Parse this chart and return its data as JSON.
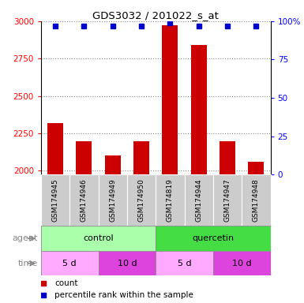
{
  "title": "GDS3032 / 201022_s_at",
  "samples": [
    "GSM174945",
    "GSM174946",
    "GSM174949",
    "GSM174950",
    "GSM174819",
    "GSM174944",
    "GSM174947",
    "GSM174948"
  ],
  "counts": [
    2320,
    2195,
    2105,
    2195,
    2975,
    2840,
    2195,
    2060
  ],
  "percentile_ranks": [
    97,
    97,
    97,
    97,
    99,
    97,
    97,
    97
  ],
  "ylim_left": [
    1975,
    3000
  ],
  "ylim_right": [
    0,
    100
  ],
  "yticks_left": [
    2000,
    2250,
    2500,
    2750,
    3000
  ],
  "yticks_right": [
    0,
    25,
    50,
    75,
    100
  ],
  "bar_color": "#cc0000",
  "dot_color": "#0000cc",
  "agent_groups": [
    {
      "label": "control",
      "start": 0,
      "end": 3,
      "color": "#aaffaa"
    },
    {
      "label": "quercetin",
      "start": 4,
      "end": 7,
      "color": "#44dd44"
    }
  ],
  "time_groups": [
    {
      "label": "5 d",
      "start": 0,
      "end": 1,
      "color": "#ffaaff"
    },
    {
      "label": "10 d",
      "start": 2,
      "end": 3,
      "color": "#dd44dd"
    },
    {
      "label": "5 d",
      "start": 4,
      "end": 5,
      "color": "#ffaaff"
    },
    {
      "label": "10 d",
      "start": 6,
      "end": 7,
      "color": "#dd44dd"
    }
  ],
  "legend_count_color": "#cc0000",
  "legend_pct_color": "#0000cc",
  "bar_width": 0.55,
  "sample_bg_color": "#cccccc",
  "label_fontsize": 8,
  "tick_fontsize": 7.5,
  "sample_fontsize": 6.5
}
